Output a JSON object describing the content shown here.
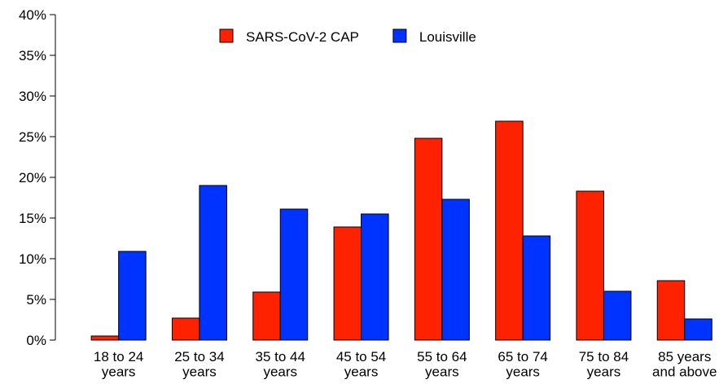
{
  "chart_data": {
    "type": "bar",
    "categories": [
      "18 to 24\nyears",
      "25 to 34\nyears",
      "35 to 44\nyears",
      "45 to 54\nyears",
      "55 to 64\nyears",
      "65 to 74\nyears",
      "75 to 84\nyears",
      "85 years\nand above"
    ],
    "series": [
      {
        "name": "SARS-CoV-2 CAP",
        "color": "#ff2200",
        "values": [
          0.5,
          2.7,
          5.9,
          13.9,
          24.8,
          26.9,
          18.3,
          7.3
        ]
      },
      {
        "name": "Louisville",
        "color": "#0033ff",
        "values": [
          10.9,
          19.0,
          16.1,
          15.5,
          17.3,
          12.8,
          6.0,
          2.6
        ]
      }
    ],
    "ylim": [
      0,
      40
    ],
    "yticks": [
      {
        "value": 0,
        "label": "0%"
      },
      {
        "value": 5,
        "label": "5%"
      },
      {
        "value": 10,
        "label": "10%"
      },
      {
        "value": 15,
        "label": "15%"
      },
      {
        "value": 20,
        "label": "20%"
      },
      {
        "value": 25,
        "label": "25%"
      },
      {
        "value": 30,
        "label": "30%"
      },
      {
        "value": 35,
        "label": "35%"
      },
      {
        "value": 40,
        "label": "40%"
      }
    ],
    "legend": "top"
  }
}
